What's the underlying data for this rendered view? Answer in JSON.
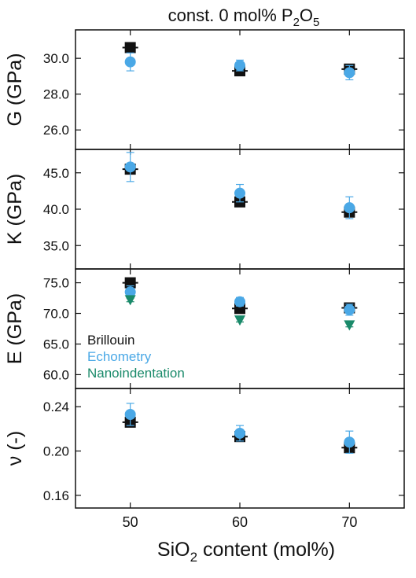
{
  "figure": {
    "title": {
      "prefix": "const. 0 mol% P",
      "sub1": "2",
      "mid": "O",
      "sub2": "5"
    },
    "xlabel": {
      "prefix": "SiO",
      "sub": "2",
      "suffix": " content (mol%)"
    }
  },
  "legend_labels": [
    {
      "name": "Brillouin",
      "color": "#111111"
    },
    {
      "name": "Echometry",
      "color": "#4aa8e6"
    },
    {
      "name": "Nanoindentation",
      "color": "#1a8a6a"
    }
  ],
  "chart_data": [
    {
      "type": "scatter",
      "ylabel": "G (GPa)",
      "xlim": [
        45,
        75
      ],
      "ylim": [
        25,
        31.5
      ],
      "yticks": [
        "26.0",
        "28.0",
        "30.0"
      ],
      "xticks": [
        "50",
        "60",
        "70"
      ],
      "series": [
        {
          "name": "Brillouin",
          "marker": "square",
          "color": "#111111",
          "points": [
            {
              "x": 50,
              "y": 30.6,
              "err": 0.2
            },
            {
              "x": 60,
              "y": 29.3,
              "err": 0.2
            },
            {
              "x": 70,
              "y": 29.4,
              "err": 0.2
            }
          ]
        },
        {
          "name": "Echometry",
          "marker": "circle",
          "color": "#4aa8e6",
          "points": [
            {
              "x": 50,
              "y": 29.8,
              "err": 0.5
            },
            {
              "x": 60,
              "y": 29.6,
              "err": 0.3
            },
            {
              "x": 70,
              "y": 29.2,
              "err": 0.4
            }
          ]
        }
      ]
    },
    {
      "type": "scatter",
      "ylabel": "K (GPa)",
      "xlim": [
        45,
        75
      ],
      "ylim": [
        32,
        48
      ],
      "yticks": [
        "35.0",
        "40.0",
        "45.0"
      ],
      "xticks": [
        "50",
        "60",
        "70"
      ],
      "series": [
        {
          "name": "Brillouin",
          "marker": "square",
          "color": "#111111",
          "points": [
            {
              "x": 50,
              "y": 45.5,
              "err": 0.3
            },
            {
              "x": 60,
              "y": 41.0,
              "err": 0.3
            },
            {
              "x": 70,
              "y": 39.6,
              "err": 0.3
            }
          ]
        },
        {
          "name": "Echometry",
          "marker": "circle",
          "color": "#4aa8e6",
          "points": [
            {
              "x": 50,
              "y": 45.8,
              "err": 2.0
            },
            {
              "x": 60,
              "y": 42.2,
              "err": 1.2
            },
            {
              "x": 70,
              "y": 40.2,
              "err": 1.5
            }
          ]
        }
      ]
    },
    {
      "type": "scatter",
      "ylabel": "E (GPa)",
      "xlim": [
        45,
        75
      ],
      "ylim": [
        58,
        77
      ],
      "yticks": [
        "60.0",
        "65.0",
        "70.0",
        "75.0"
      ],
      "xticks": [
        "50",
        "60",
        "70"
      ],
      "series": [
        {
          "name": "Brillouin",
          "marker": "square",
          "color": "#111111",
          "points": [
            {
              "x": 50,
              "y": 75.0,
              "err": 0.5
            },
            {
              "x": 60,
              "y": 70.8,
              "err": 0.5
            },
            {
              "x": 70,
              "y": 70.9,
              "err": 0.5
            }
          ]
        },
        {
          "name": "Echometry",
          "marker": "circle",
          "color": "#4aa8e6",
          "points": [
            {
              "x": 50,
              "y": 73.5,
              "err": 1.0
            },
            {
              "x": 60,
              "y": 71.9,
              "err": 0.7
            },
            {
              "x": 70,
              "y": 70.6,
              "err": 0.9
            }
          ]
        },
        {
          "name": "Nanoindentation",
          "marker": "triangle-down",
          "color": "#1a8a6a",
          "points": [
            {
              "x": 50,
              "y": 72.2,
              "err": 0.3
            },
            {
              "x": 60,
              "y": 68.9,
              "err": 0.3
            },
            {
              "x": 70,
              "y": 68.1,
              "err": 0.3
            }
          ]
        }
      ]
    },
    {
      "type": "scatter",
      "ylabel": "ν (-)",
      "xlim": [
        45,
        75
      ],
      "ylim": [
        0.15,
        0.255
      ],
      "yticks": [
        "0.16",
        "0.20",
        "0.24"
      ],
      "xticks": [
        "50",
        "60",
        "70"
      ],
      "series": [
        {
          "name": "Brillouin",
          "marker": "square",
          "color": "#111111",
          "points": [
            {
              "x": 50,
              "y": 0.226,
              "err": 0.003
            },
            {
              "x": 60,
              "y": 0.213,
              "err": 0.003
            },
            {
              "x": 70,
              "y": 0.203,
              "err": 0.003
            }
          ]
        },
        {
          "name": "Echometry",
          "marker": "circle",
          "color": "#4aa8e6",
          "points": [
            {
              "x": 50,
              "y": 0.233,
              "err": 0.01
            },
            {
              "x": 60,
              "y": 0.216,
              "err": 0.007
            },
            {
              "x": 70,
              "y": 0.208,
              "err": 0.01
            }
          ]
        }
      ]
    }
  ]
}
